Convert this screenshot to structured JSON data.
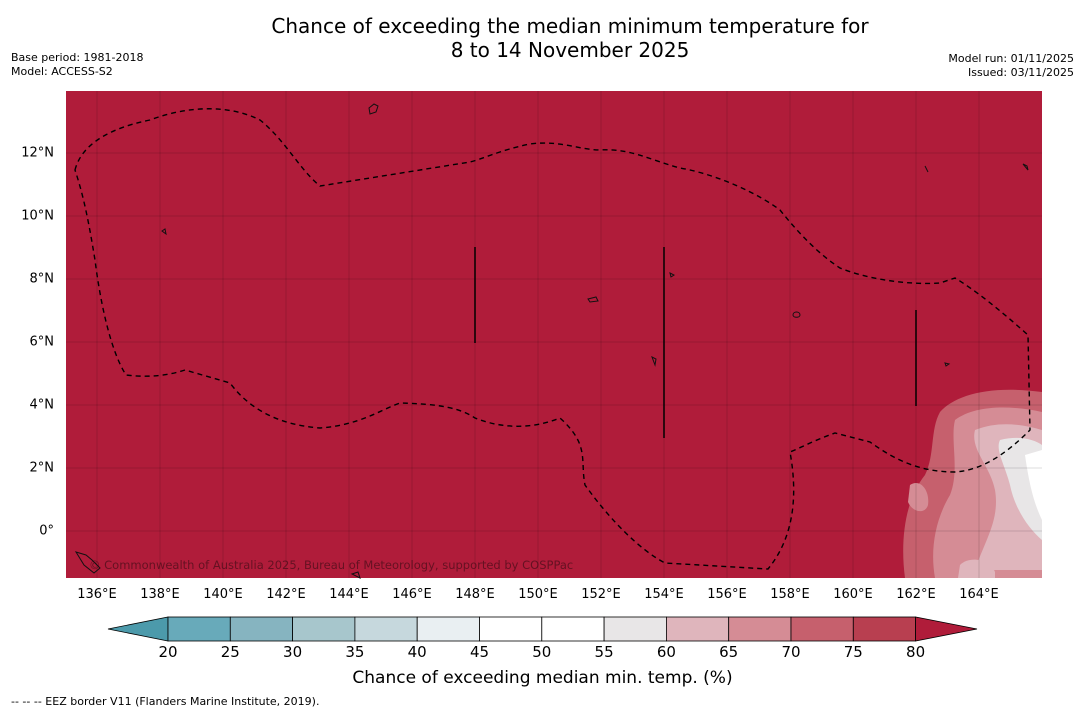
{
  "title": {
    "line1": "Chance of exceeding the median minimum temperature for",
    "line2": "8 to 14 November 2025"
  },
  "meta_left": {
    "base_period": "Base period: 1981-2018",
    "model": "Model: ACCESS-S2"
  },
  "meta_right": {
    "model_run": "Model run: 01/11/2025",
    "issued": "Issued: 03/11/2025"
  },
  "map": {
    "copyright": "© Commonwealth of Australia 2025, Bureau of Meteorology, supported by COSPPac",
    "dominant_color": "#b01c3a",
    "x_ticks": [
      "136°E",
      "138°E",
      "140°E",
      "142°E",
      "144°E",
      "146°E",
      "148°E",
      "150°E",
      "152°E",
      "154°E",
      "156°E",
      "158°E",
      "160°E",
      "162°E",
      "164°E"
    ],
    "y_ticks": [
      "12°N",
      "10°N",
      "8°N",
      "6°N",
      "4°N",
      "2°N",
      "0°"
    ],
    "lon_range": [
      135,
      166
    ],
    "lat_range": [
      -1.5,
      14
    ]
  },
  "colorbar": {
    "title": "Chance of exceeding median min. temp. (%)",
    "labels": [
      "20",
      "25",
      "30",
      "35",
      "40",
      "45",
      "50",
      "55",
      "60",
      "65",
      "70",
      "75",
      "80"
    ],
    "colors": [
      "#68aaba",
      "#86b4c0",
      "#a7c6cc",
      "#c6d8dd",
      "#e9eff2",
      "#ffffff",
      "#ffffff",
      "#e8e6e7",
      "#dfb5bc",
      "#d58c95",
      "#c6606d",
      "#b83f50"
    ],
    "under_color": "#4c9aab",
    "over_color": "#b01c3a"
  },
  "footer": "--  --  -- EEZ border V11 (Flanders Marine Institute, 2019)."
}
